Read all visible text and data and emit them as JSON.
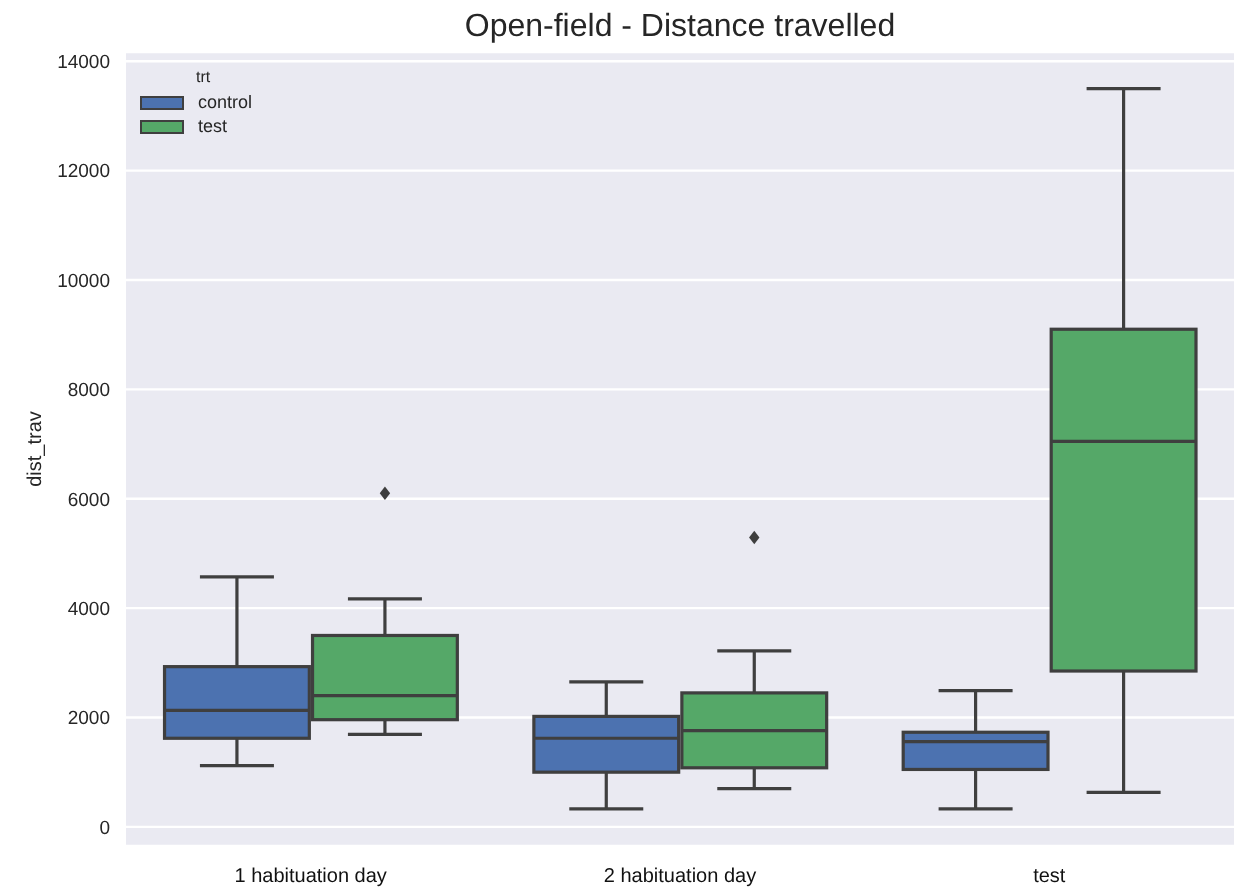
{
  "chart_data": {
    "type": "box",
    "title": "Open-field - Distance travelled",
    "ylabel": "dist_trav",
    "legend_title": "trt",
    "categories": [
      "1 habituation day",
      "2 habituation day",
      "test"
    ],
    "series": [
      {
        "name": "control",
        "color": "#4c72b0",
        "boxes": [
          {
            "low": 1120,
            "q1": 1620,
            "median": 2130,
            "q3": 2930,
            "high": 4570
          },
          {
            "low": 330,
            "q1": 1000,
            "median": 1620,
            "q3": 2020,
            "high": 2650
          },
          {
            "low": 330,
            "q1": 1050,
            "median": 1560,
            "q3": 1730,
            "high": 2490
          }
        ]
      },
      {
        "name": "test",
        "color": "#55a868",
        "boxes": [
          {
            "low": 1690,
            "q1": 1960,
            "median": 2400,
            "q3": 3500,
            "high": 4170,
            "outliers": [
              6100
            ]
          },
          {
            "low": 700,
            "q1": 1080,
            "median": 1760,
            "q3": 2450,
            "high": 3220,
            "outliers": [
              5290
            ]
          },
          {
            "low": 630,
            "q1": 2850,
            "median": 7050,
            "q3": 9100,
            "high": 13500
          }
        ]
      }
    ],
    "ylim": [
      -350,
      14170
    ],
    "yticks": [
      0,
      2000,
      4000,
      6000,
      8000,
      10000,
      12000,
      14000
    ],
    "grid": "y",
    "legend": "top left",
    "marker": "diamond"
  }
}
